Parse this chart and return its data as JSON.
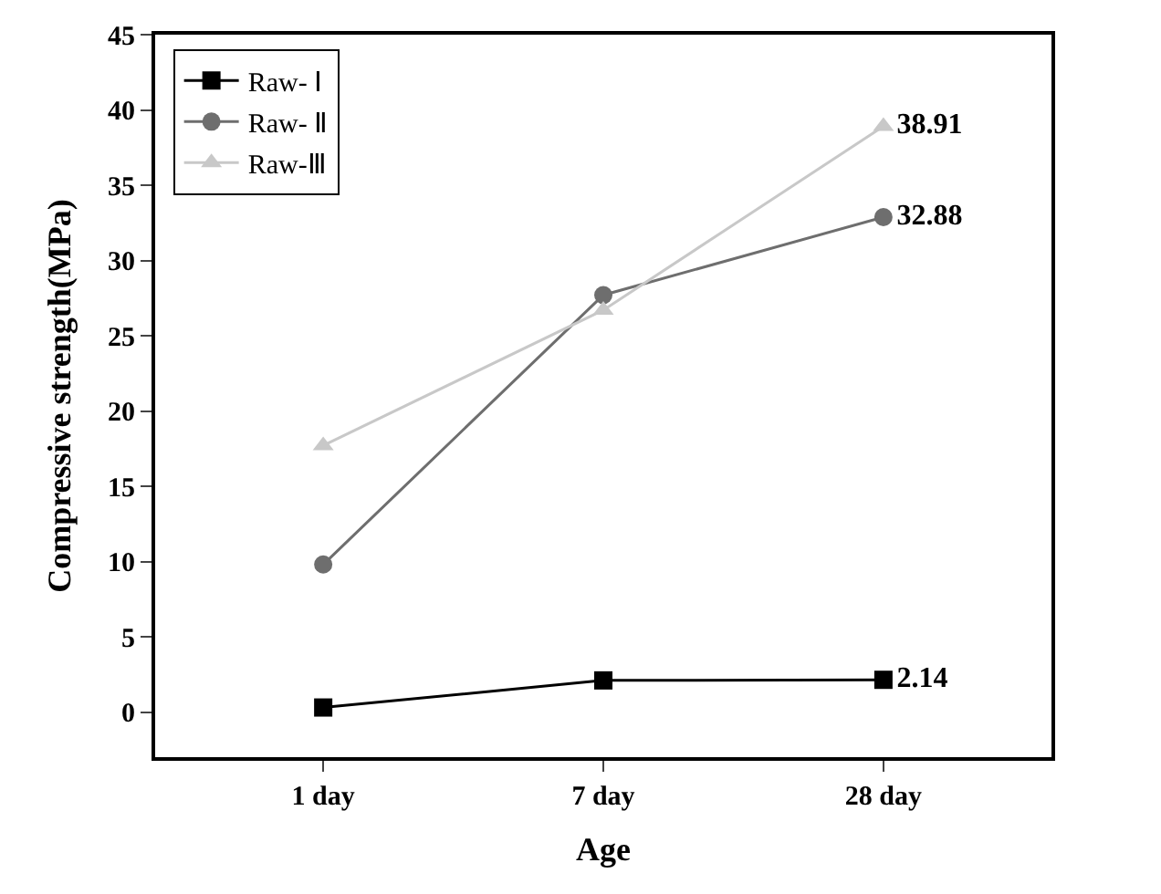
{
  "chart_data": {
    "type": "line",
    "xlabel": "Age",
    "ylabel": "Compressive strength(MPa)",
    "categories": [
      "1 day",
      "7 day",
      "28 day"
    ],
    "series": [
      {
        "name": "Raw- Ⅰ",
        "color": "#000000",
        "marker": "square",
        "values": [
          0.3,
          2.1,
          2.14
        ],
        "value_labels": [
          null,
          null,
          "2.14"
        ]
      },
      {
        "name": "Raw- Ⅱ",
        "color": "#6e6e6e",
        "marker": "circle",
        "values": [
          9.8,
          27.7,
          32.88
        ],
        "value_labels": [
          null,
          null,
          "32.88"
        ]
      },
      {
        "name": "Raw-Ⅲ",
        "color": "#c8c8c8",
        "marker": "triangle",
        "values": [
          17.7,
          26.7,
          38.91
        ],
        "value_labels": [
          null,
          null,
          "38.91"
        ]
      }
    ],
    "ylim": [
      -3,
      45
    ],
    "yticks": [
      0,
      5,
      10,
      15,
      20,
      25,
      30,
      35,
      40,
      45
    ],
    "legend": "top left",
    "line_style": "solid"
  }
}
